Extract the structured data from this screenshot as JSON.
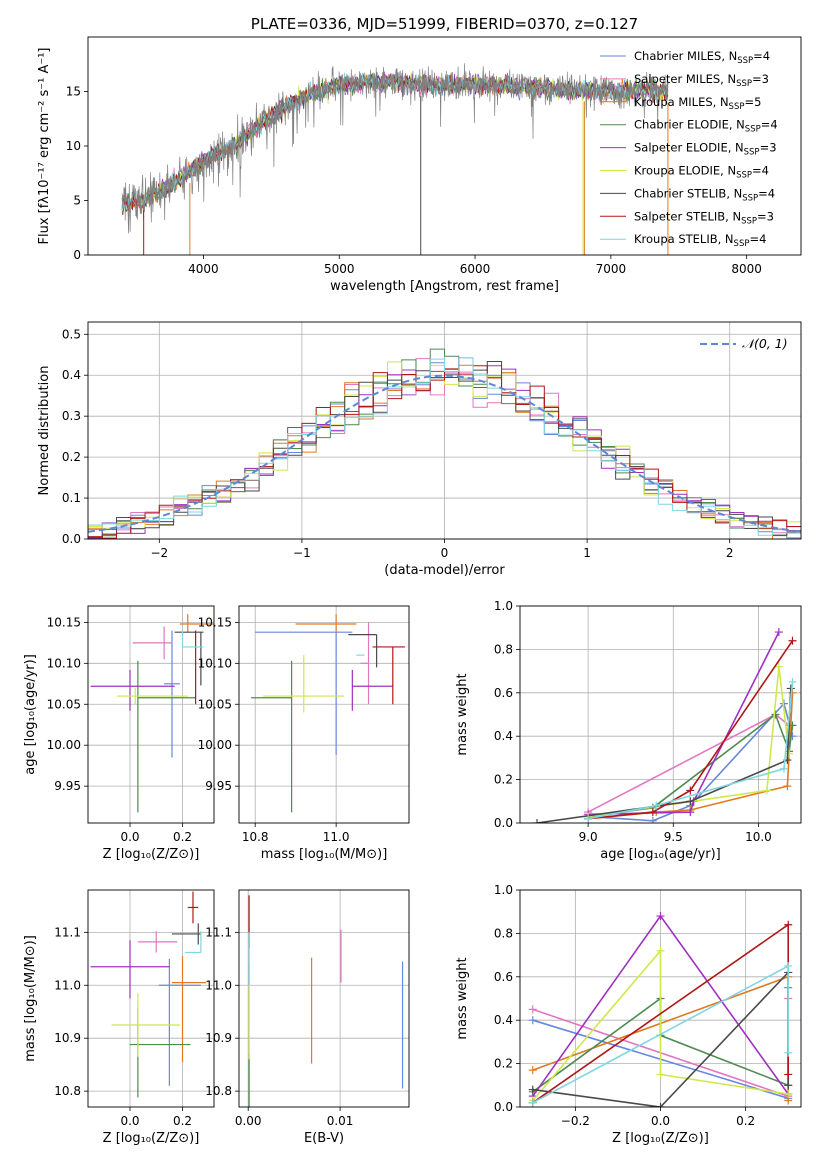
{
  "chart_data": [
    {
      "id": "spectrum",
      "type": "line",
      "title": "PLATE=0336, MJD=51999, FIBERID=0370, z=0.127",
      "xlabel": "wavelength [Angstrom, rest frame]",
      "ylabel": "Flux [fλ10⁻¹⁷ erg cm⁻² s⁻¹ A⁻¹]",
      "xlim": [
        3150,
        8400
      ],
      "ylim": [
        0,
        20
      ],
      "xticks": [
        4000,
        5000,
        6000,
        7000,
        8000
      ],
      "yticks": [
        0,
        5,
        10,
        15
      ],
      "grid": false,
      "legend_position": "top-right",
      "data_envelope": {
        "x": [
          3400,
          3500,
          3600,
          3700,
          3800,
          3900,
          4000,
          4100,
          4200,
          4300,
          4400,
          4500,
          4600,
          4700,
          4800,
          4900,
          5000,
          5200,
          5400,
          5600,
          5800,
          6000,
          6200,
          6400,
          6600,
          6800,
          7000,
          7200,
          7400
        ],
        "y": [
          4.6,
          4.7,
          5.4,
          6.0,
          6.8,
          7.6,
          8.6,
          9.3,
          9.8,
          10.9,
          11.8,
          12.7,
          13.6,
          14.3,
          14.9,
          15.2,
          15.6,
          15.8,
          15.9,
          15.6,
          15.5,
          15.7,
          15.5,
          15.4,
          15.2,
          15.1,
          15.0,
          15.1,
          15.0
        ]
      },
      "series": [
        {
          "name": "Chabrier MILES, N",
          "sub": "SSP",
          "suffix": "=4",
          "color": "#6688dd"
        },
        {
          "name": "Salpeter MILES, N",
          "sub": "SSP",
          "suffix": "=3",
          "color": "#e377c2"
        },
        {
          "name": "Kroupa MILES, N",
          "sub": "SSP",
          "suffix": "=5",
          "color": "#e07a22"
        },
        {
          "name": "Chabrier ELODIE, N",
          "sub": "SSP",
          "suffix": "=4",
          "color": "#4f8a4f"
        },
        {
          "name": "Salpeter ELODIE, N",
          "sub": "SSP",
          "suffix": "=3",
          "color": "#a030c0"
        },
        {
          "name": "Kroupa ELODIE, N",
          "sub": "SSP",
          "suffix": "=4",
          "color": "#cfe84a"
        },
        {
          "name": "Chabrier STELIB, N",
          "sub": "SSP",
          "suffix": "=4",
          "color": "#4a4a4a"
        },
        {
          "name": "Salpeter STELIB, N",
          "sub": "SSP",
          "suffix": "=3",
          "color": "#b01818"
        },
        {
          "name": "Kroupa STELIB, N",
          "sub": "SSP",
          "suffix": "=4",
          "color": "#7fd6e0"
        }
      ],
      "data_color": "#808080"
    },
    {
      "id": "residuals",
      "type": "histogram",
      "xlabel": "(data-model)/error",
      "ylabel": "Normed distribution",
      "xlim": [
        -2.5,
        2.5
      ],
      "ylim": [
        0,
        0.53
      ],
      "xticks": [
        -2,
        -1,
        0,
        1,
        2
      ],
      "yticks": [
        0.0,
        0.1,
        0.2,
        0.3,
        0.4,
        0.5
      ],
      "grid": true,
      "legend_position": "top-right",
      "legend": [
        {
          "label": "𝒩(0, 1)",
          "color": "#5a8ad6",
          "style": "dashed"
        }
      ],
      "bin_width": 0.1,
      "series_colors": [
        "#6688dd",
        "#e377c2",
        "#e07a22",
        "#4f8a4f",
        "#a030c0",
        "#cfe84a",
        "#4a4a4a",
        "#b01818",
        "#7fd6e0"
      ]
    },
    {
      "id": "age_vs_Z",
      "type": "errorbar",
      "xlabel": "Z [log₁₀(Z/Z⊙)]",
      "ylabel": "age  [log₁₀(age/yr)]",
      "xlim": [
        -0.16,
        0.32
      ],
      "ylim": [
        9.905,
        10.17
      ],
      "xticks": [
        0.0,
        0.2
      ],
      "yticks": [
        9.95,
        10.0,
        10.05,
        10.1,
        10.15
      ],
      "grid": true,
      "points": [
        {
          "x": 0.16,
          "xerr": [
            0.03,
            0.03
          ],
          "y": 10.075,
          "yerr": [
            0.09,
            0.065
          ],
          "color": "#6688dd"
        },
        {
          "x": 0.13,
          "xerr": [
            0.12,
            0.03
          ],
          "y": 10.125,
          "yerr": [
            0.02,
            0.02
          ],
          "color": "#e377c2"
        },
        {
          "x": 0.22,
          "xerr": [
            0.03,
            0.1
          ],
          "y": 10.148,
          "yerr": [
            0.01,
            0.012
          ],
          "color": "#e07a22"
        },
        {
          "x": 0.03,
          "xerr": [
            0.0,
            0.22
          ],
          "y": 10.058,
          "yerr": [
            0.14,
            0.045
          ],
          "color": "#4f8a4f"
        },
        {
          "x": 0.0,
          "xerr": [
            0.15,
            0.17
          ],
          "y": 10.072,
          "yerr": [
            0.03,
            0.02
          ],
          "color": "#a030c0"
        },
        {
          "x": 0.02,
          "xerr": [
            0.07,
            0.2
          ],
          "y": 10.06,
          "yerr": [
            0.01,
            0.01
          ],
          "color": "#cfe84a"
        },
        {
          "x": 0.27,
          "xerr": [
            0.1,
            0.01
          ],
          "y": 10.138,
          "yerr": [
            0.065,
            0.0
          ],
          "color": "#4a4a4a"
        },
        {
          "x": 0.25,
          "xerr": [
            0.0,
            0.0
          ],
          "y": 10.095,
          "yerr": [
            0.045,
            0.045
          ],
          "color": "#b01818"
        },
        {
          "x": 0.2,
          "xerr": [
            0.0,
            0.08
          ],
          "y": 10.12,
          "yerr": [
            0.0,
            0.02
          ],
          "color": "#7fd6e0"
        }
      ]
    },
    {
      "id": "age_vs_mass",
      "type": "errorbar",
      "xlabel": "mass [log₁₀(M/M⊙)]",
      "ylabel": "",
      "xlim": [
        10.76,
        11.18
      ],
      "ylim": [
        9.905,
        10.17
      ],
      "xticks": [
        10.8,
        11.0
      ],
      "yticks": [
        9.95,
        10.0,
        10.05,
        10.1,
        10.15
      ],
      "grid": true,
      "points": [
        {
          "x": 11.0,
          "xerr": [
            0.2,
            0.04
          ],
          "y": 10.138,
          "yerr": [
            0.15,
            0.0
          ],
          "color": "#6688dd"
        },
        {
          "x": 11.08,
          "xerr": [
            0.02,
            0.0
          ],
          "y": 10.1,
          "yerr": [
            0.05,
            0.05
          ],
          "color": "#e377c2"
        },
        {
          "x": 11.0,
          "xerr": [
            0.1,
            0.05
          ],
          "y": 10.148,
          "yerr": [
            0.01,
            0.012
          ],
          "color": "#e07a22"
        },
        {
          "x": 10.89,
          "xerr": [
            0.1,
            0.0
          ],
          "y": 10.058,
          "yerr": [
            0.14,
            0.045
          ],
          "color": "#4f8a4f"
        },
        {
          "x": 11.04,
          "xerr": [
            0.0,
            0.1
          ],
          "y": 10.072,
          "yerr": [
            0.03,
            0.02
          ],
          "color": "#a030c0"
        },
        {
          "x": 10.92,
          "xerr": [
            0.1,
            0.1
          ],
          "y": 10.06,
          "yerr": [
            0.02,
            0.05
          ],
          "color": "#cfe84a"
        },
        {
          "x": 11.1,
          "xerr": [
            0.07,
            0.0
          ],
          "y": 10.135,
          "yerr": [
            0.04,
            0.0
          ],
          "color": "#4a4a4a"
        },
        {
          "x": 11.14,
          "xerr": [
            0.05,
            0.03
          ],
          "y": 10.12,
          "yerr": [
            0.07,
            0.0
          ],
          "color": "#b01818"
        },
        {
          "x": 11.07,
          "xerr": [
            0.02,
            0.0
          ],
          "y": 10.11,
          "yerr": [
            0.0,
            0.0
          ],
          "color": "#7fd6e0"
        }
      ]
    },
    {
      "id": "weight_vs_age",
      "type": "line",
      "xlabel": "age  [log₁₀(age/yr)]",
      "ylabel": "mass weight",
      "xlim": [
        8.6,
        10.25
      ],
      "ylim": [
        0,
        1
      ],
      "xticks": [
        9.0,
        9.5,
        10.0
      ],
      "yticks": [
        0.0,
        0.2,
        0.4,
        0.6,
        0.8,
        1.0
      ],
      "grid": true,
      "series": [
        {
          "color": "#e377c2",
          "x": [
            9.0,
            10.1,
            10.18
          ],
          "y": [
            0.05,
            0.5,
            0.45
          ]
        },
        {
          "color": "#6688dd",
          "x": [
            9.0,
            9.38,
            9.6,
            10.15,
            10.2
          ],
          "y": [
            0.03,
            0.01,
            0.08,
            0.55,
            0.4
          ]
        },
        {
          "color": "#e07a22",
          "x": [
            9.0,
            9.4,
            9.6,
            10.17,
            10.2,
            10.19
          ],
          "y": [
            0.02,
            0.05,
            0.06,
            0.17,
            0.6,
            0.45
          ]
        },
        {
          "color": "#4f8a4f",
          "x": [
            9.0,
            9.38,
            10.1,
            10.18,
            10.2
          ],
          "y": [
            0.03,
            0.07,
            0.5,
            0.33,
            0.45
          ]
        },
        {
          "color": "#a030c0",
          "x": [
            9.0,
            9.6,
            9.62,
            10.12
          ],
          "y": [
            0.04,
            0.05,
            0.1,
            0.88
          ]
        },
        {
          "color": "#cfe84a",
          "x": [
            9.0,
            10.05,
            10.12,
            10.18
          ],
          "y": [
            0.03,
            0.15,
            0.72,
            0.32
          ]
        },
        {
          "color": "#4a4a4a",
          "x": [
            8.7,
            9.6,
            10.17,
            10.19
          ],
          "y": [
            0.0,
            0.1,
            0.29,
            0.62
          ]
        },
        {
          "color": "#b01818",
          "x": [
            9.0,
            9.38,
            9.6,
            10.2
          ],
          "y": [
            0.02,
            0.05,
            0.15,
            0.84
          ]
        },
        {
          "color": "#7fd6e0",
          "x": [
            9.0,
            9.4,
            10.15,
            10.2
          ],
          "y": [
            0.02,
            0.08,
            0.25,
            0.65
          ]
        }
      ]
    },
    {
      "id": "mass_vs_Z",
      "type": "errorbar",
      "xlabel": "Z [log₁₀(Z/Z⊙)]",
      "ylabel": "mass [log₁₀(M/M⊙)]",
      "xlim": [
        -0.16,
        0.32
      ],
      "ylim": [
        10.77,
        11.18
      ],
      "xticks": [
        0.0,
        0.2
      ],
      "yticks": [
        10.8,
        10.9,
        11.0,
        11.1
      ],
      "grid": true,
      "points": [
        {
          "x": 0.15,
          "xerr": [
            0.04,
            0.12
          ],
          "y": 11.0,
          "yerr": [
            0.19,
            0.05
          ],
          "color": "#6688dd"
        },
        {
          "x": 0.1,
          "xerr": [
            0.07,
            0.08
          ],
          "y": 11.082,
          "yerr": [
            0.02,
            0.02
          ],
          "color": "#e377c2"
        },
        {
          "x": 0.2,
          "xerr": [
            0.04,
            0.09
          ],
          "y": 11.005,
          "yerr": [
            0.15,
            0.05
          ],
          "color": "#e07a22"
        },
        {
          "x": 0.03,
          "xerr": [
            0.03,
            0.2
          ],
          "y": 10.888,
          "yerr": [
            0.1,
            0.07
          ],
          "color": "#4f8a4f"
        },
        {
          "x": 0.0,
          "xerr": [
            0.15,
            0.15
          ],
          "y": 11.035,
          "yerr": [
            0.06,
            0.05
          ],
          "color": "#a030c0"
        },
        {
          "x": 0.03,
          "xerr": [
            0.1,
            0.16
          ],
          "y": 10.925,
          "yerr": [
            0.06,
            0.06
          ],
          "color": "#cfe84a"
        },
        {
          "x": 0.26,
          "xerr": [
            0.1,
            0.01
          ],
          "y": 11.097,
          "yerr": [
            0.02,
            0.02
          ],
          "color": "#4a4a4a"
        },
        {
          "x": 0.24,
          "xerr": [
            0.02,
            0.02
          ],
          "y": 11.147,
          "yerr": [
            0.03,
            0.03
          ],
          "color": "#b01818"
        },
        {
          "x": 0.27,
          "xerr": [
            0.06,
            0.0
          ],
          "y": 11.062,
          "yerr": [
            0.0,
            0.04
          ],
          "color": "#7fd6e0"
        }
      ]
    },
    {
      "id": "mass_vs_ebv",
      "type": "errorbar",
      "xlabel": "E(B-V)",
      "ylabel": "",
      "xlim": [
        -0.001,
        0.0175
      ],
      "ylim": [
        10.77,
        11.18
      ],
      "xticks": [
        0.0,
        0.01
      ],
      "yticks": [
        10.8,
        10.9,
        11.0,
        11.1
      ],
      "grid": true,
      "points": [
        {
          "x": 0.0168,
          "xerr": [
            0,
            0
          ],
          "y": 10.925,
          "yerr": [
            0.12,
            0.12
          ],
          "color": "#6688dd"
        },
        {
          "x": 0.0101,
          "xerr": [
            0,
            0
          ],
          "y": 11.055,
          "yerr": [
            0.05,
            0.05
          ],
          "color": "#e377c2"
        },
        {
          "x": 0.0069,
          "xerr": [
            0,
            0
          ],
          "y": 10.952,
          "yerr": [
            0.1,
            0.1
          ],
          "color": "#e07a22"
        },
        {
          "x": 0.0001,
          "xerr": [
            0,
            0
          ],
          "y": 10.82,
          "yerr": [
            0.05,
            0.05
          ],
          "color": "#4f8a4f"
        },
        {
          "x": 0.0001,
          "xerr": [
            0,
            0
          ],
          "y": 10.95,
          "yerr": [
            0.09,
            0.09
          ],
          "color": "#cfe84a"
        },
        {
          "x": 0.0001,
          "xerr": [
            0,
            0
          ],
          "y": 11.12,
          "yerr": [
            0.05,
            0.05
          ],
          "color": "#b01818"
        },
        {
          "x": 0.0001,
          "xerr": [
            0,
            0
          ],
          "y": 11.05,
          "yerr": [
            0.05,
            0.05
          ],
          "color": "#7fd6e0"
        }
      ]
    },
    {
      "id": "weight_vs_Z",
      "type": "line",
      "xlabel": "Z [log₁₀(Z/Z⊙)]",
      "ylabel": "mass weight",
      "xlim": [
        -0.33,
        0.33
      ],
      "ylim": [
        0,
        1
      ],
      "xticks": [
        -0.2,
        0.0,
        0.2
      ],
      "yticks": [
        0.0,
        0.2,
        0.4,
        0.6,
        0.8,
        1.0
      ],
      "grid": true,
      "series": [
        {
          "color": "#6688dd",
          "x": [
            -0.3,
            0.3,
            0.3
          ],
          "y": [
            0.4,
            0.04,
            0.55
          ]
        },
        {
          "color": "#e377c2",
          "x": [
            -0.3,
            0.3,
            0.3
          ],
          "y": [
            0.45,
            0.05,
            0.5
          ]
        },
        {
          "color": "#e07a22",
          "x": [
            -0.3,
            0.3,
            0.3
          ],
          "y": [
            0.17,
            0.6,
            0.03
          ]
        },
        {
          "color": "#4f8a4f",
          "x": [
            -0.3,
            0.0,
            0.0,
            0.3
          ],
          "y": [
            0.07,
            0.5,
            0.33,
            0.1
          ]
        },
        {
          "color": "#a030c0",
          "x": [
            -0.3,
            0.0,
            0.3
          ],
          "y": [
            0.05,
            0.88,
            0.06
          ]
        },
        {
          "color": "#cfe84a",
          "x": [
            -0.3,
            0.0,
            0.0,
            0.3
          ],
          "y": [
            0.03,
            0.72,
            0.15,
            0.06
          ]
        },
        {
          "color": "#4a4a4a",
          "x": [
            -0.3,
            0.0,
            0.3,
            0.3
          ],
          "y": [
            0.08,
            0.0,
            0.62,
            0.1
          ]
        },
        {
          "color": "#b01818",
          "x": [
            -0.3,
            0.3,
            0.3
          ],
          "y": [
            0.02,
            0.84,
            0.15
          ]
        },
        {
          "color": "#7fd6e0",
          "x": [
            -0.3,
            0.3,
            0.3
          ],
          "y": [
            0.02,
            0.65,
            0.25
          ]
        }
      ]
    }
  ]
}
